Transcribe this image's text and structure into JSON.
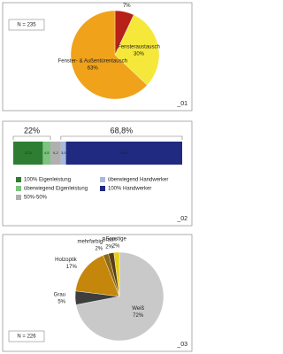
{
  "chart_data": [
    {
      "type": "pie",
      "annotation": "N = 235",
      "panel_label": "_01",
      "categories": [
        "Außentürentausch",
        "Fensteraustausch",
        "Fenster- & Außentürentausch"
      ],
      "values": [
        7,
        30,
        63
      ],
      "value_labels": [
        "7%",
        "30%",
        "63%"
      ],
      "colors": [
        "#b8201a",
        "#f5e83a",
        "#f0a21a"
      ]
    },
    {
      "type": "stacked_bar",
      "panel_label": "_02",
      "group_labels": [
        "22%",
        "68,8%"
      ],
      "series": [
        {
          "name": "100% Eigenleistung",
          "color": "#2e7d32",
          "values": [
            17.5
          ],
          "value_labels": [
            "17,5"
          ]
        },
        {
          "name": "überwiegend Eigenleistung",
          "color": "#7cc47f",
          "values": [
            4.5
          ],
          "value_labels": [
            "4,5"
          ]
        },
        {
          "name": "50%-50%",
          "color": "#b0b0b0",
          "values": [
            6.2
          ],
          "value_labels": [
            "6,2"
          ]
        },
        {
          "name": "überwiegend Handwerker",
          "color": "#a8b8e0",
          "values": [
            3.0
          ],
          "value_labels": [
            "3,0"
          ]
        },
        {
          "name": "100% Handwerker",
          "color": "#1f2a80",
          "values": [
            68.8
          ],
          "value_labels": [
            "68,8"
          ]
        }
      ]
    },
    {
      "type": "pie",
      "annotation": "N = 226",
      "panel_label": "_03",
      "categories": [
        "Weiß",
        "Grau",
        "Holzoptik",
        "mehrfarbig",
        "Braun",
        "Sonstige"
      ],
      "values": [
        72,
        5,
        17,
        2,
        2,
        2
      ],
      "value_labels": [
        "72%",
        "5%",
        "17%",
        "2%",
        "2%",
        "2%"
      ],
      "colors": [
        "#c9c9c9",
        "#3e3e3e",
        "#c5860c",
        "#8c6a12",
        "#5b3c17",
        "#e6cf12"
      ]
    }
  ]
}
